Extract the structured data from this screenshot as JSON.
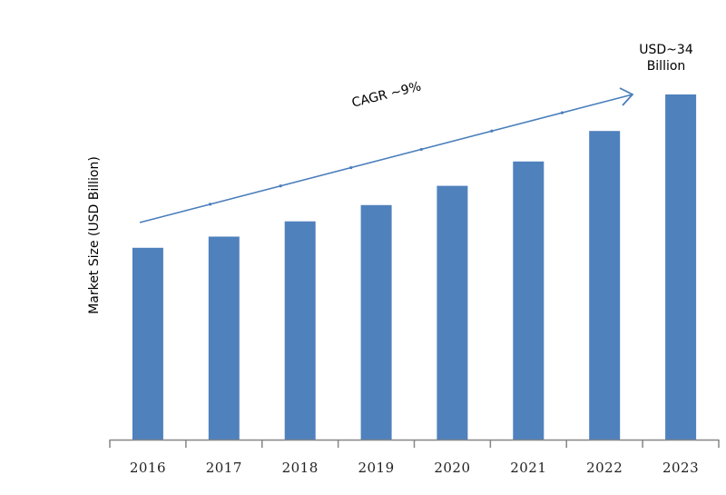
{
  "chart_data": {
    "type": "bar",
    "title": "",
    "xlabel": "",
    "ylabel": "Market Size (USD Billion)",
    "categories": [
      "2016",
      "2017",
      "2018",
      "2019",
      "2020",
      "2021",
      "2022",
      "2023"
    ],
    "values": [
      18.9,
      20.0,
      21.5,
      23.1,
      25.0,
      27.4,
      30.4,
      34.0
    ],
    "ylim": [
      0,
      34
    ],
    "grid": false,
    "legend": null,
    "bar_color": "#4F81BD",
    "annotations": [
      {
        "text": "USD~34 Billion",
        "target": "2023"
      },
      {
        "text": "CAGR ~9%",
        "type": "trend-arrow"
      }
    ]
  },
  "labels": {
    "ylabel": "Market Size (USD Billion)",
    "annotation_line1": "USD~34",
    "annotation_line2": "Billion",
    "cagr": "CAGR ~9%"
  },
  "colors": {
    "bar": "#4F81BD",
    "arrow": "#4A7EBB",
    "axis": "#868686"
  }
}
